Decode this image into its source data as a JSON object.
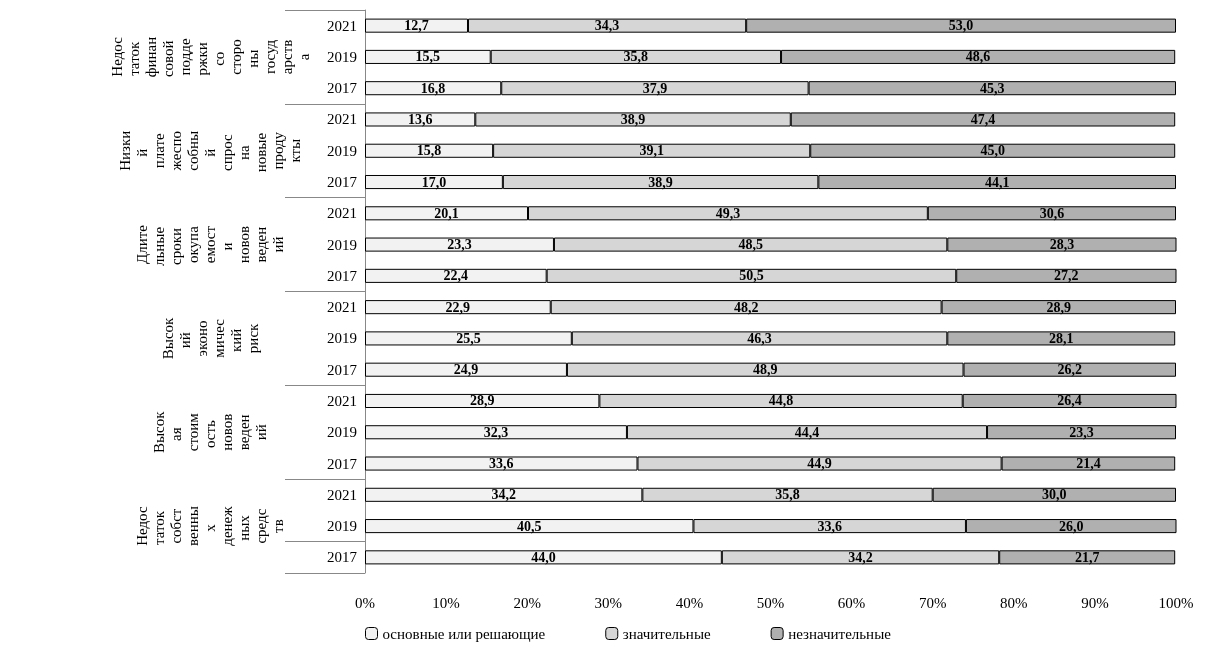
{
  "chart_data": {
    "type": "bar",
    "orientation": "horizontal",
    "stacked": true,
    "legend": "bottom",
    "grid": false,
    "categories": [
      "2021",
      "2019",
      "2017",
      "2021",
      "2019",
      "2017",
      "2021",
      "2019",
      "2017",
      "2021",
      "2019",
      "2017",
      "2021",
      "2019",
      "2017",
      "2021",
      "2019",
      "2017"
    ],
    "annotations": [
      "Недостаток финансовой поддержки со стороны государства",
      "Низкий платежеспособный спрос на новые продукты",
      "Длительные сроки окупаемости нововведений",
      "Высокий экономический риск",
      "Высокая стоимость нововведений",
      "Недостаток собственных денежных средств"
    ],
    "xlim": [
      0,
      100
    ],
    "xticks": [
      {
        "value": 0,
        "label": "0%"
      },
      {
        "value": 10,
        "label": "10%"
      },
      {
        "value": 20,
        "label": "20%"
      },
      {
        "value": 30,
        "label": "30%"
      },
      {
        "value": 40,
        "label": "40%"
      },
      {
        "value": 50,
        "label": "50%"
      },
      {
        "value": 60,
        "label": "60%"
      },
      {
        "value": 70,
        "label": "70%"
      },
      {
        "value": 80,
        "label": "80%"
      },
      {
        "value": 90,
        "label": "90%"
      },
      {
        "value": 100,
        "label": "100%"
      }
    ],
    "series": [
      {
        "name": "основные или решающие",
        "color": "#f2f2f2",
        "values": [
          12.7,
          15.5,
          16.8,
          13.6,
          15.8,
          17.0,
          20.1,
          23.3,
          22.4,
          22.9,
          25.5,
          24.9,
          28.9,
          32.3,
          33.6,
          34.2,
          40.5,
          44.0
        ],
        "value_labels": [
          "12,7",
          "15,5",
          "16,8",
          "13,6",
          "15,8",
          "17,0",
          "20,1",
          "23,3",
          "22,4",
          "22,9",
          "25,5",
          "24,9",
          "28,9",
          "32,3",
          "33,6",
          "34,2",
          "40,5",
          "44,0"
        ]
      },
      {
        "name": "значительные",
        "color": "#d6d6d6",
        "values": [
          34.3,
          35.8,
          37.9,
          38.9,
          39.1,
          38.9,
          49.3,
          48.5,
          50.5,
          48.2,
          46.3,
          48.9,
          44.8,
          44.4,
          44.9,
          35.8,
          33.6,
          34.2
        ],
        "value_labels": [
          "34,3",
          "35,8",
          "37,9",
          "38,9",
          "39,1",
          "38,9",
          "49,3",
          "48,5",
          "50,5",
          "48,2",
          "46,3",
          "48,9",
          "44,8",
          "44,4",
          "44,9",
          "35,8",
          "33,6",
          "34,2"
        ]
      },
      {
        "name": "незначительные",
        "color": "#b0b0b0",
        "values": [
          53.0,
          48.6,
          45.3,
          47.4,
          45.0,
          44.1,
          30.6,
          28.3,
          27.2,
          28.9,
          28.1,
          26.2,
          26.4,
          23.3,
          21.4,
          30.0,
          26.0,
          21.7
        ],
        "value_labels": [
          "53,0",
          "48,6",
          "45,3",
          "47,4",
          "45,0",
          "44,1",
          "30,6",
          "28,3",
          "27,2",
          "28,9",
          "28,1",
          "26,2",
          "26,4",
          "23,3",
          "21,4",
          "30,0",
          "26,0",
          "21,7"
        ]
      }
    ]
  }
}
